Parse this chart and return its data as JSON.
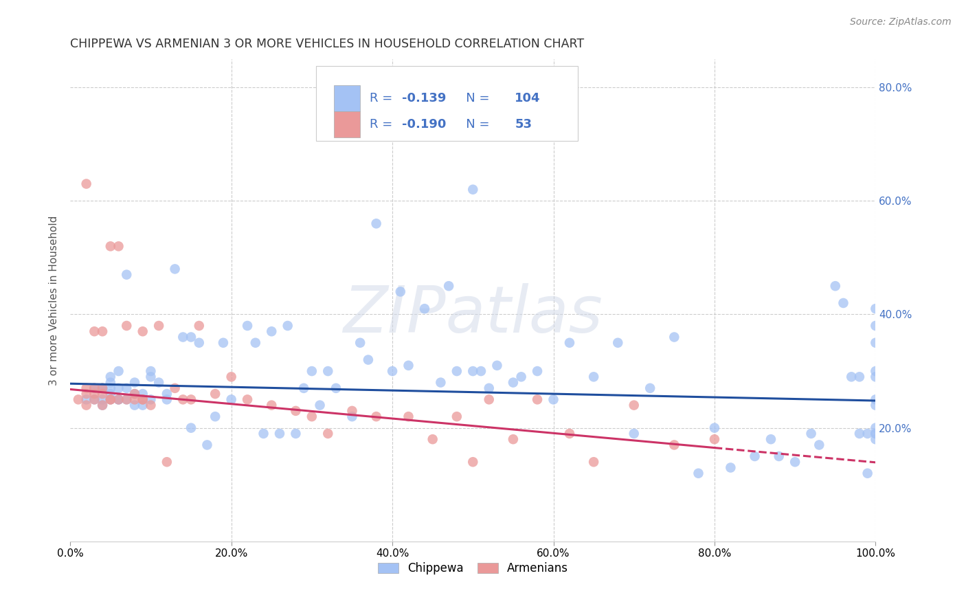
{
  "title": "CHIPPEWA VS ARMENIAN 3 OR MORE VEHICLES IN HOUSEHOLD CORRELATION CHART",
  "source": "Source: ZipAtlas.com",
  "ylabel": "3 or more Vehicles in Household",
  "watermark": "ZIPatlas",
  "legend_blue_r": "-0.139",
  "legend_blue_n": "104",
  "legend_pink_r": "-0.190",
  "legend_pink_n": "53",
  "xlim": [
    0.0,
    1.0
  ],
  "ylim": [
    0.0,
    0.85
  ],
  "xtick_labels": [
    "0.0%",
    "20.0%",
    "40.0%",
    "60.0%",
    "80.0%",
    "100.0%"
  ],
  "xtick_vals": [
    0.0,
    0.2,
    0.4,
    0.6,
    0.8,
    1.0
  ],
  "ytick_vals": [
    0.2,
    0.4,
    0.6,
    0.8
  ],
  "right_ytick_labels": [
    "20.0%",
    "40.0%",
    "60.0%",
    "80.0%"
  ],
  "blue_scatter_color": "#a4c2f4",
  "pink_scatter_color": "#ea9999",
  "blue_line_color": "#1f4e9e",
  "pink_line_color": "#cc3366",
  "grid_color": "#cccccc",
  "background_color": "#ffffff",
  "legend_text_color": "#4472c4",
  "chippewa_x": [
    0.02,
    0.03,
    0.03,
    0.04,
    0.04,
    0.04,
    0.04,
    0.05,
    0.05,
    0.05,
    0.05,
    0.05,
    0.06,
    0.06,
    0.06,
    0.06,
    0.07,
    0.07,
    0.07,
    0.08,
    0.08,
    0.08,
    0.09,
    0.09,
    0.1,
    0.1,
    0.1,
    0.11,
    0.12,
    0.12,
    0.13,
    0.14,
    0.15,
    0.15,
    0.16,
    0.17,
    0.18,
    0.19,
    0.2,
    0.22,
    0.23,
    0.24,
    0.25,
    0.26,
    0.27,
    0.28,
    0.29,
    0.3,
    0.31,
    0.32,
    0.33,
    0.35,
    0.36,
    0.37,
    0.38,
    0.4,
    0.41,
    0.42,
    0.44,
    0.46,
    0.47,
    0.48,
    0.5,
    0.5,
    0.51,
    0.52,
    0.53,
    0.55,
    0.56,
    0.58,
    0.6,
    0.62,
    0.65,
    0.68,
    0.7,
    0.72,
    0.75,
    0.78,
    0.8,
    0.82,
    0.85,
    0.87,
    0.88,
    0.9,
    0.92,
    0.93,
    0.95,
    0.96,
    0.97,
    0.98,
    0.98,
    0.99,
    0.99,
    1.0,
    1.0,
    1.0,
    1.0,
    1.0,
    1.0,
    1.0,
    1.0,
    1.0,
    1.0,
    1.0
  ],
  "chippewa_y": [
    0.25,
    0.27,
    0.25,
    0.27,
    0.24,
    0.27,
    0.25,
    0.29,
    0.25,
    0.27,
    0.26,
    0.28,
    0.3,
    0.25,
    0.25,
    0.27,
    0.47,
    0.27,
    0.25,
    0.28,
    0.26,
    0.24,
    0.24,
    0.26,
    0.25,
    0.3,
    0.29,
    0.28,
    0.25,
    0.26,
    0.48,
    0.36,
    0.2,
    0.36,
    0.35,
    0.17,
    0.22,
    0.35,
    0.25,
    0.38,
    0.35,
    0.19,
    0.37,
    0.19,
    0.38,
    0.19,
    0.27,
    0.3,
    0.24,
    0.3,
    0.27,
    0.22,
    0.35,
    0.32,
    0.56,
    0.3,
    0.44,
    0.31,
    0.41,
    0.28,
    0.45,
    0.3,
    0.62,
    0.3,
    0.3,
    0.27,
    0.31,
    0.28,
    0.29,
    0.3,
    0.25,
    0.35,
    0.29,
    0.35,
    0.19,
    0.27,
    0.36,
    0.12,
    0.2,
    0.13,
    0.15,
    0.18,
    0.15,
    0.14,
    0.19,
    0.17,
    0.45,
    0.42,
    0.29,
    0.29,
    0.19,
    0.19,
    0.12,
    0.41,
    0.38,
    0.24,
    0.29,
    0.35,
    0.19,
    0.3,
    0.19,
    0.18,
    0.25,
    0.2
  ],
  "armenian_x": [
    0.01,
    0.02,
    0.02,
    0.02,
    0.02,
    0.03,
    0.03,
    0.03,
    0.03,
    0.04,
    0.04,
    0.04,
    0.04,
    0.05,
    0.05,
    0.05,
    0.06,
    0.06,
    0.07,
    0.07,
    0.08,
    0.08,
    0.09,
    0.09,
    0.09,
    0.1,
    0.11,
    0.12,
    0.13,
    0.14,
    0.15,
    0.16,
    0.18,
    0.2,
    0.22,
    0.25,
    0.28,
    0.3,
    0.32,
    0.35,
    0.38,
    0.42,
    0.45,
    0.48,
    0.5,
    0.52,
    0.55,
    0.58,
    0.62,
    0.65,
    0.7,
    0.75,
    0.8
  ],
  "armenian_y": [
    0.25,
    0.26,
    0.24,
    0.27,
    0.63,
    0.25,
    0.26,
    0.37,
    0.27,
    0.27,
    0.24,
    0.26,
    0.37,
    0.25,
    0.25,
    0.52,
    0.25,
    0.52,
    0.25,
    0.38,
    0.25,
    0.26,
    0.25,
    0.25,
    0.37,
    0.24,
    0.38,
    0.14,
    0.27,
    0.25,
    0.25,
    0.38,
    0.26,
    0.29,
    0.25,
    0.24,
    0.23,
    0.22,
    0.19,
    0.23,
    0.22,
    0.22,
    0.18,
    0.22,
    0.14,
    0.25,
    0.18,
    0.25,
    0.19,
    0.14,
    0.24,
    0.17,
    0.18
  ],
  "blue_line_x0": 0.0,
  "blue_line_x1": 1.0,
  "blue_line_y0": 0.278,
  "blue_line_y1": 0.248,
  "pink_line_x0": 0.0,
  "pink_line_x1": 0.8,
  "pink_line_y0": 0.268,
  "pink_line_y1": 0.165,
  "pink_line_dash_x1": 1.0
}
